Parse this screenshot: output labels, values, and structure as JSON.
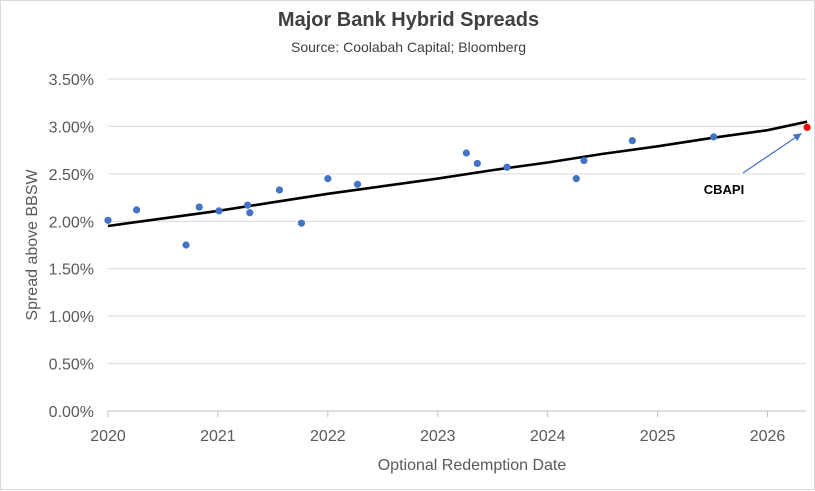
{
  "chart_data": {
    "type": "scatter",
    "title": "Major Bank Hybrid Spreads",
    "subtitle": "Source: Coolabah Capital; Bloomberg",
    "xlabel": "Optional Redemption Date",
    "ylabel": "Spread above BBSW",
    "xlim": [
      2020,
      2026.35
    ],
    "ylim": [
      0.0,
      3.5
    ],
    "x_ticks": [
      "2020",
      "2021",
      "2022",
      "2023",
      "2024",
      "2025",
      "2026"
    ],
    "y_ticks": [
      "0.00%",
      "0.50%",
      "1.00%",
      "1.50%",
      "2.00%",
      "2.50%",
      "3.00%",
      "3.50%"
    ],
    "grid": "horizontal",
    "series": [
      {
        "color": "#4472c4",
        "points": [
          {
            "x": 2020.0,
            "y": 2.01
          },
          {
            "x": 2020.26,
            "y": 2.12
          },
          {
            "x": 2020.71,
            "y": 1.75
          },
          {
            "x": 2020.83,
            "y": 2.15
          },
          {
            "x": 2021.01,
            "y": 2.11
          },
          {
            "x": 2021.27,
            "y": 2.17
          },
          {
            "x": 2021.29,
            "y": 2.09
          },
          {
            "x": 2021.56,
            "y": 2.33
          },
          {
            "x": 2021.76,
            "y": 1.98
          },
          {
            "x": 2022.0,
            "y": 2.45
          },
          {
            "x": 2022.27,
            "y": 2.39
          },
          {
            "x": 2023.26,
            "y": 2.72
          },
          {
            "x": 2023.36,
            "y": 2.61
          },
          {
            "x": 2023.63,
            "y": 2.57
          },
          {
            "x": 2024.26,
            "y": 2.45
          },
          {
            "x": 2024.33,
            "y": 2.64
          },
          {
            "x": 2024.77,
            "y": 2.85
          },
          {
            "x": 2025.51,
            "y": 2.89
          }
        ]
      },
      {
        "color": "#ff0000",
        "points": [
          {
            "x": 2026.36,
            "y": 2.99
          }
        ]
      }
    ],
    "trendline": {
      "color": "#000000",
      "points": [
        {
          "x": 2020.0,
          "y": 1.95
        },
        {
          "x": 2020.5,
          "y": 2.03
        },
        {
          "x": 2021.0,
          "y": 2.11
        },
        {
          "x": 2021.5,
          "y": 2.2
        },
        {
          "x": 2022.0,
          "y": 2.29
        },
        {
          "x": 2022.5,
          "y": 2.37
        },
        {
          "x": 2023.0,
          "y": 2.45
        },
        {
          "x": 2023.5,
          "y": 2.54
        },
        {
          "x": 2024.0,
          "y": 2.62
        },
        {
          "x": 2024.5,
          "y": 2.71
        },
        {
          "x": 2025.0,
          "y": 2.79
        },
        {
          "x": 2025.5,
          "y": 2.88
        },
        {
          "x": 2026.0,
          "y": 2.96
        },
        {
          "x": 2026.36,
          "y": 3.05
        }
      ]
    },
    "annotations": [
      {
        "text": "CBAPI",
        "arrow_to": {
          "x": 2026.31,
          "y": 2.99
        }
      }
    ]
  }
}
